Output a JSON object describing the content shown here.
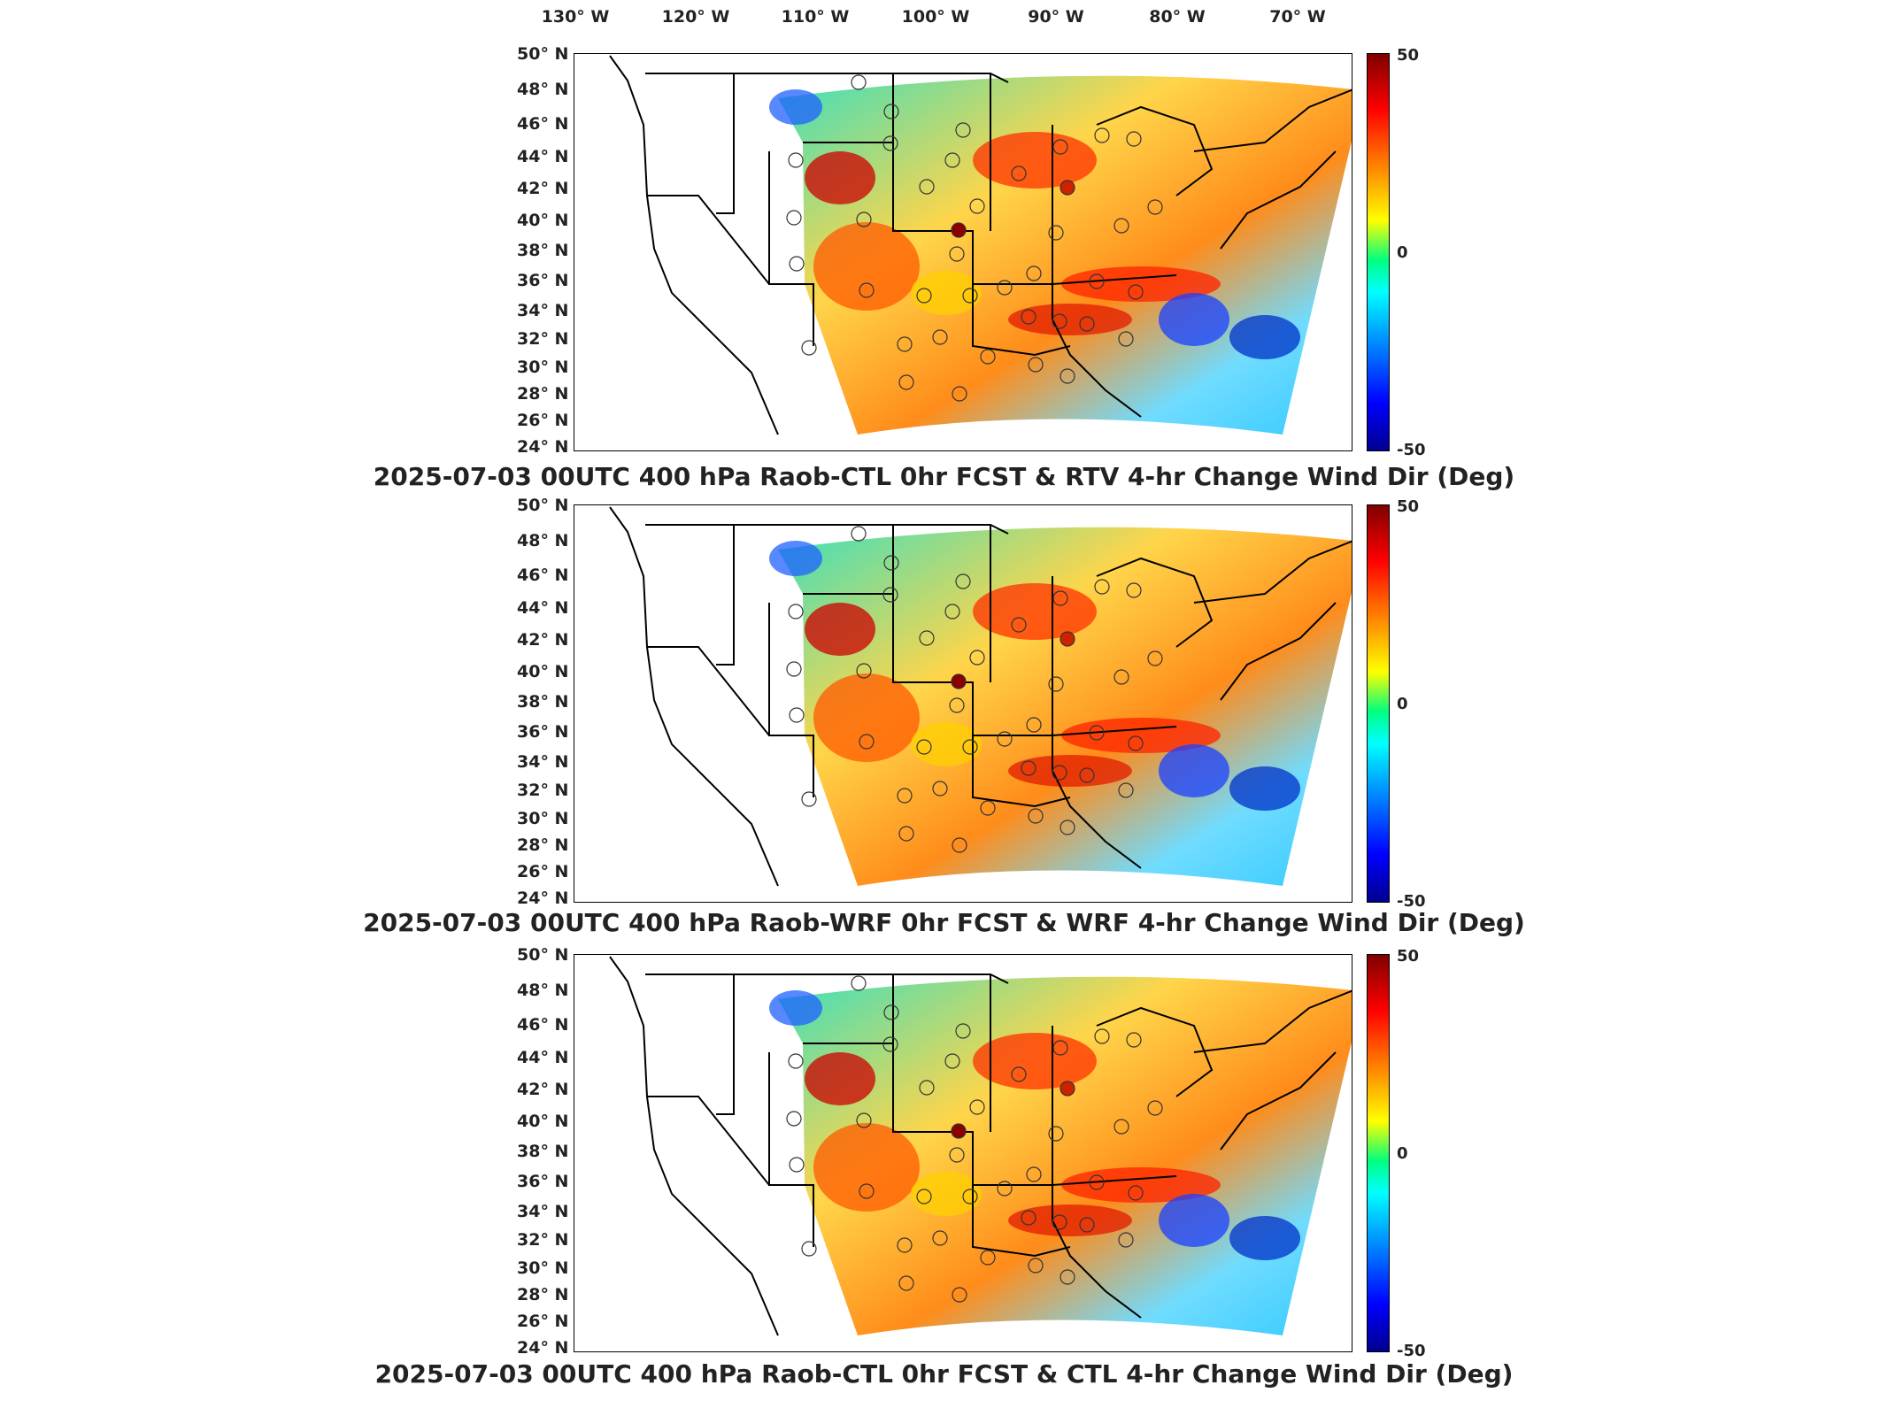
{
  "longitude_labels": [
    "130° W",
    "120° W",
    "110° W",
    "100° W",
    "90° W",
    "80° W",
    "70° W"
  ],
  "latitude_labels": [
    "50° N",
    "48° N",
    "46° N",
    "44° N",
    "42° N",
    "40° N",
    "38° N",
    "36° N",
    "34° N",
    "32° N",
    "30° N",
    "28° N",
    "26° N",
    "24° N"
  ],
  "colorbar": {
    "max_label": "50",
    "mid_label": "0",
    "min_label": "-50",
    "colors": [
      "#800000",
      "#ff0000",
      "#ffff00",
      "#00ffff",
      "#0000ff",
      "#00008f"
    ]
  },
  "panels": [
    {
      "title": "2025-07-03 00UTC 400 hPa Raob-CTL 0hr FCST & RTV 4-hr Change Wind Dir (Deg)"
    },
    {
      "title": "2025-07-03 00UTC 400 hPa Raob-WRF 0hr FCST & WRF 4-hr Change Wind Dir (Deg)"
    },
    {
      "title": "2025-07-03 00UTC 400 hPa Raob-CTL 0hr FCST & CTL 4-hr Change Wind Dir (Deg)"
    }
  ]
}
